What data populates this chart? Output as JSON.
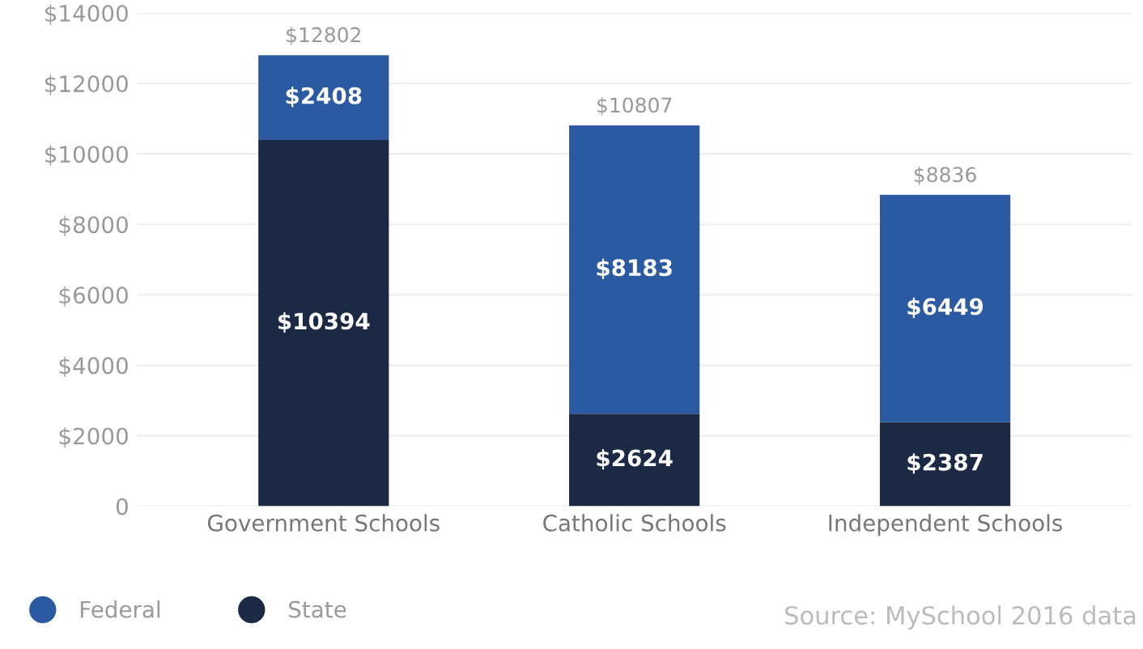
{
  "chart_data": {
    "type": "bar",
    "stacked": true,
    "categories": [
      "Government Schools",
      "Catholic Schools",
      "Independent Schools"
    ],
    "series": [
      {
        "name": "State",
        "color": "#1b2945",
        "values": [
          10394,
          2624,
          2387
        ],
        "value_labels": [
          "$10394",
          "$2624",
          "$2387"
        ]
      },
      {
        "name": "Federal",
        "color": "#2b5aa3",
        "values": [
          2408,
          8183,
          6449
        ],
        "value_labels": [
          "$2408",
          "$8183",
          "$6449"
        ]
      }
    ],
    "totals": [
      "$12802",
      "$10807",
      "$8836"
    ],
    "ylim": [
      0,
      14000
    ],
    "yticks": [
      {
        "value": 0,
        "label": "0"
      },
      {
        "value": 2000,
        "label": "$2000"
      },
      {
        "value": 4000,
        "label": "$4000"
      },
      {
        "value": 6000,
        "label": "$6000"
      },
      {
        "value": 8000,
        "label": "$8000"
      },
      {
        "value": 10000,
        "label": "$10000"
      },
      {
        "value": 12000,
        "label": "$12000"
      },
      {
        "value": 14000,
        "label": "$14000"
      }
    ],
    "grid": "y",
    "legend": "bottom left",
    "annotations": [
      "Source: MySchool 2016 data"
    ]
  }
}
